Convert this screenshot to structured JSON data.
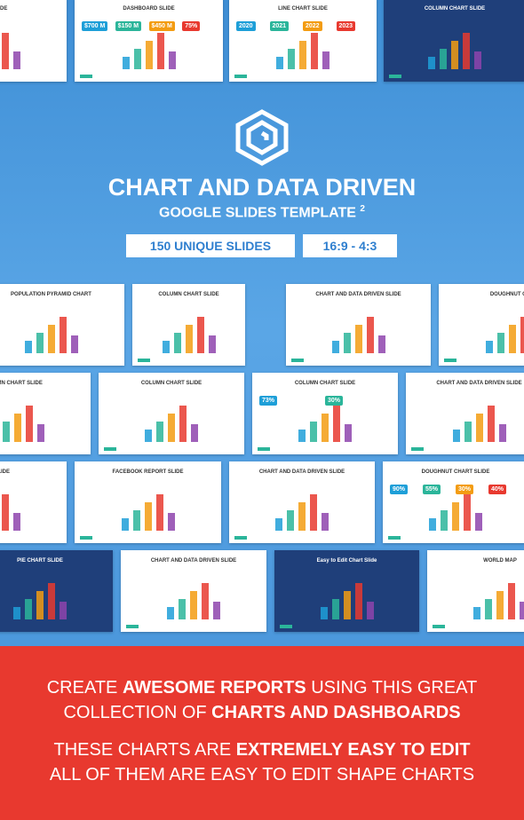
{
  "top_slides": [
    {
      "title": "ART SLIDE"
    },
    {
      "title": "DASHBOARD SLIDE",
      "labels": [
        "$700 M",
        "$150 M",
        "$450 M",
        "75%"
      ]
    },
    {
      "title": "LINE CHART SLIDE",
      "labels": [
        "2020",
        "2021",
        "2022",
        "2023"
      ]
    },
    {
      "title": "COLUMN CHART SLIDE"
    }
  ],
  "hero": {
    "title": "CHART AND DATA DRIVEN",
    "subtitle": "GOOGLE SLIDES TEMPLATE",
    "superscript": "2",
    "badges": [
      "150 UNIQUE SLIDES",
      "16:9 - 4:3"
    ]
  },
  "rows": [
    [
      {
        "title": "POPULATION PYRAMID CHART"
      },
      {
        "title": "COLUMN CHART SLIDE"
      },
      {
        "title": "CHART AND DATA DRIVEN SLIDE"
      },
      {
        "title": "DOUGHNUT CHA"
      }
    ],
    [
      {
        "title": "UMN CHART SLIDE"
      },
      {
        "title": "COLUMN CHART SLIDE"
      },
      {
        "title": "COLUMN CHART SLIDE",
        "labels": [
          "73%",
          "30%"
        ]
      },
      {
        "title": "CHART AND DATA DRIVEN SLIDE"
      }
    ],
    [
      {
        "title": "HART SLIDE"
      },
      {
        "title": "FACEBOOK REPORT SLIDE"
      },
      {
        "title": "CHART AND DATA DRIVEN SLIDE"
      },
      {
        "title": "DOUGHNUT CHART SLIDE",
        "labels": [
          "90%",
          "55%",
          "30%",
          "40%"
        ]
      }
    ],
    [
      {
        "title": "PIE CHART SLIDE"
      },
      {
        "title": "CHART AND DATA DRIVEN SLIDE"
      },
      {
        "title": "Easy to Edit Chart Slide"
      },
      {
        "title": "WORLD MAP"
      }
    ]
  ],
  "footer": {
    "lines": [
      [
        {
          "text": "CREATE ",
          "bold": false
        },
        {
          "text": "AWESOME REPORTS",
          "bold": true
        },
        {
          "text": " USING THIS GREAT",
          "bold": false
        }
      ],
      [
        {
          "text": "COLLECTION OF ",
          "bold": false
        },
        {
          "text": "CHARTS AND DASHBOARDS",
          "bold": true
        }
      ],
      [
        {
          "text": "THESE CHARTS ARE ",
          "bold": false
        },
        {
          "text": "EXTREMELY EASY TO EDIT",
          "bold": true
        }
      ],
      [
        {
          "text": "ALL OF THEM ARE EASY TO EDIT SHAPE CHARTS",
          "bold": false
        }
      ]
    ]
  }
}
